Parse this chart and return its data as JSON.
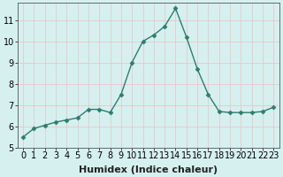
{
  "x": [
    0,
    1,
    2,
    3,
    4,
    5,
    6,
    7,
    8,
    9,
    10,
    11,
    12,
    13,
    14,
    15,
    16,
    17,
    18,
    19,
    20,
    21,
    22,
    23
  ],
  "y": [
    5.5,
    5.9,
    6.05,
    6.2,
    6.3,
    6.4,
    6.8,
    6.8,
    6.65,
    7.5,
    9.0,
    10.0,
    10.3,
    10.7,
    11.55,
    10.2,
    8.7,
    7.5,
    6.7,
    6.65,
    6.65,
    6.65,
    6.7,
    6.9
  ],
  "xlabel": "Humidex (Indice chaleur)",
  "ylim": [
    5,
    11.8
  ],
  "xlim": [
    -0.5,
    23.5
  ],
  "yticks": [
    5,
    6,
    7,
    8,
    9,
    10,
    11
  ],
  "xticks": [
    0,
    1,
    2,
    3,
    4,
    5,
    6,
    7,
    8,
    9,
    10,
    11,
    12,
    13,
    14,
    15,
    16,
    17,
    18,
    19,
    20,
    21,
    22,
    23
  ],
  "line_color": "#2e7d6e",
  "marker": "D",
  "marker_size": 2.5,
  "bg_color": "#d6f0f0",
  "grid_color": "#c8dede",
  "xlabel_fontsize": 8,
  "tick_fontsize": 7,
  "linewidth": 1.0
}
